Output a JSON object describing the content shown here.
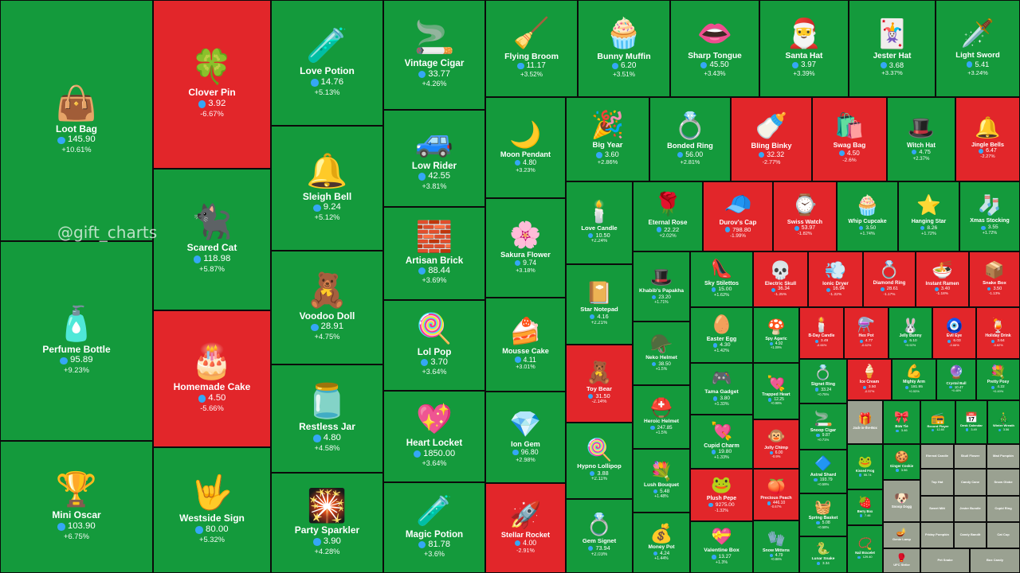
{
  "watermark": "@gift_charts",
  "colors": {
    "up": "#149a3c",
    "down": "#e2262a",
    "na": "#9aa191",
    "currency_icon": "#35a7f5"
  },
  "chart_data": {
    "type": "treemap",
    "title": "",
    "value_unit": "TON",
    "items": [
      {
        "name": "Loot Bag",
        "price": "145.90",
        "change": "+10.61%",
        "icon": "👜"
      },
      {
        "name": "Perfume Bottle",
        "price": "95.89",
        "change": "+9.23%",
        "icon": "🧴"
      },
      {
        "name": "Mini Oscar",
        "price": "103.90",
        "change": "+6.75%",
        "icon": "🏆"
      },
      {
        "name": "Clover Pin",
        "price": "3.92",
        "change": "-6.67%",
        "icon": "🍀"
      },
      {
        "name": "Scared Cat",
        "price": "118.98",
        "change": "+5.87%",
        "icon": "🐈‍⬛"
      },
      {
        "name": "Homemade Cake",
        "price": "4.50",
        "change": "-5.66%",
        "icon": "🎂"
      },
      {
        "name": "Westside Sign",
        "price": "80.00",
        "change": "+5.32%",
        "icon": "🤟"
      },
      {
        "name": "Love Potion",
        "price": "14.76",
        "change": "+5.13%",
        "icon": "🧪"
      },
      {
        "name": "Sleigh Bell",
        "price": "9.24",
        "change": "+5.12%",
        "icon": "🔔"
      },
      {
        "name": "Voodoo Doll",
        "price": "28.91",
        "change": "+4.75%",
        "icon": "🧸"
      },
      {
        "name": "Restless Jar",
        "price": "4.80",
        "change": "+4.58%",
        "icon": "🫙"
      },
      {
        "name": "Party Sparkler",
        "price": "3.90",
        "change": "+4.28%",
        "icon": "🎇"
      },
      {
        "name": "Vintage Cigar",
        "price": "33.77",
        "change": "+4.26%",
        "icon": "🚬"
      },
      {
        "name": "Low Rider",
        "price": "42.55",
        "change": "+3.81%",
        "icon": "🚙"
      },
      {
        "name": "Artisan Brick",
        "price": "88.44",
        "change": "+3.69%",
        "icon": "🧱"
      },
      {
        "name": "Lol Pop",
        "price": "3.70",
        "change": "+3.64%",
        "icon": "🍭"
      },
      {
        "name": "Heart Locket",
        "price": "1850.00",
        "change": "+3.64%",
        "icon": "💖"
      },
      {
        "name": "Magic Potion",
        "price": "81.78",
        "change": "+3.6%",
        "icon": "🧪"
      },
      {
        "name": "Flying Broom",
        "price": "11.17",
        "change": "+3.52%",
        "icon": "🧹"
      },
      {
        "name": "Bunny Muffin",
        "price": "6.20",
        "change": "+3.51%",
        "icon": "🧁"
      },
      {
        "name": "Sharp Tongue",
        "price": "45.50",
        "change": "+3.43%",
        "icon": "👄"
      },
      {
        "name": "Santa Hat",
        "price": "3.97",
        "change": "+3.39%",
        "icon": "🎅"
      },
      {
        "name": "Jester Hat",
        "price": "3.68",
        "change": "+3.37%",
        "icon": "🃏"
      },
      {
        "name": "Light Sword",
        "price": "5.41",
        "change": "+3.24%",
        "icon": "🗡️"
      },
      {
        "name": "Moon Pendant",
        "price": "4.80",
        "change": "+3.23%",
        "icon": "🌙"
      },
      {
        "name": "Sakura Flower",
        "price": "9.74",
        "change": "+3.18%",
        "icon": "🌸"
      },
      {
        "name": "Mousse Cake",
        "price": "4.11",
        "change": "+3.01%",
        "icon": "🍰"
      },
      {
        "name": "Ion Gem",
        "price": "96.80",
        "change": "+2.98%",
        "icon": "💎"
      },
      {
        "name": "Stellar Rocket",
        "price": "4.00",
        "change": "-2.91%",
        "icon": "🚀"
      },
      {
        "name": "Big Year",
        "price": "3.60",
        "change": "+2.86%",
        "icon": "🎉"
      },
      {
        "name": "Bonded Ring",
        "price": "56.00",
        "change": "+2.81%",
        "icon": "💍"
      },
      {
        "name": "Bling Binky",
        "price": "32.32",
        "change": "-2.77%",
        "icon": "🍼"
      },
      {
        "name": "Swag Bag",
        "price": "4.50",
        "change": "-2.6%",
        "icon": "🛍️"
      },
      {
        "name": "Witch Hat",
        "price": "4.75",
        "change": "+2.37%",
        "icon": "🎩"
      },
      {
        "name": "Jingle Bells",
        "price": "6.47",
        "change": "-2.27%",
        "icon": "🔔"
      },
      {
        "name": "Love Candle",
        "price": "10.50",
        "change": "+2.24%",
        "icon": "🕯️"
      },
      {
        "name": "Star Notepad",
        "price": "4.16",
        "change": "+2.21%",
        "icon": "📔"
      },
      {
        "name": "Toy Bear",
        "price": "31.50",
        "change": "-2.14%",
        "icon": "🧸"
      },
      {
        "name": "Hypno Lollipop",
        "price": "3.88",
        "change": "+2.11%",
        "icon": "🍭"
      },
      {
        "name": "Gem Signet",
        "price": "73.94",
        "change": "+2.03%",
        "icon": "💍"
      },
      {
        "name": "Eternal Rose",
        "price": "22.22",
        "change": "+2.02%",
        "icon": "🌹"
      },
      {
        "name": "Durov's Cap",
        "price": "798.80",
        "change": "-1.99%",
        "icon": "🧢"
      },
      {
        "name": "Swiss Watch",
        "price": "53.97",
        "change": "-1.82%",
        "icon": "⌚"
      },
      {
        "name": "Whip Cupcake",
        "price": "3.50",
        "change": "+1.74%",
        "icon": "🧁"
      },
      {
        "name": "Hanging Star",
        "price": "8.26",
        "change": "+1.72%",
        "icon": "⭐"
      },
      {
        "name": "Xmas Stocking",
        "price": "3.55",
        "change": "+1.72%",
        "icon": "🧦"
      },
      {
        "name": "Khabib's Papakha",
        "price": "23.20",
        "change": "+1.71%",
        "icon": "🎩"
      },
      {
        "name": "Sky Stilettos",
        "price": "15.00",
        "change": "+1.62%",
        "icon": "👠"
      },
      {
        "name": "Electric Skull",
        "price": "36.34",
        "change": "-1.25%",
        "icon": "💀"
      },
      {
        "name": "Ionic Dryer",
        "price": "16.94",
        "change": "-1.22%",
        "icon": "💨"
      },
      {
        "name": "Diamond Ring",
        "price": "28.61",
        "change": "-1.17%",
        "icon": "💍"
      },
      {
        "name": "Instant Ramen",
        "price": "3.40",
        "change": "-1.18%",
        "icon": "🍜"
      },
      {
        "name": "Snake Box",
        "price": "3.50",
        "change": "-1.13%",
        "icon": "📦"
      },
      {
        "name": "Neko Helmet",
        "price": "38.50",
        "change": "+1.5%",
        "icon": "🪖"
      },
      {
        "name": "Easter Egg",
        "price": "4.30",
        "change": "+1.42%",
        "icon": "🥚"
      },
      {
        "name": "Spy Agaric",
        "price": "4.92",
        "change": "+1.09%",
        "icon": "🍄"
      },
      {
        "name": "B-Day Candle",
        "price": "3.49",
        "change": "-0.66%",
        "icon": "🕯️"
      },
      {
        "name": "Hex Pot",
        "price": "4.77",
        "change": "-0.62%",
        "icon": "⚗️"
      },
      {
        "name": "Jelly Bunny",
        "price": "6.10",
        "change": "+0.92%",
        "icon": "🐰"
      },
      {
        "name": "Evil Eye",
        "price": "6.03",
        "change": "-0.66%",
        "icon": "🧿"
      },
      {
        "name": "Holiday Drink",
        "price": "3.64",
        "change": "-0.62%",
        "icon": "🍹"
      },
      {
        "name": "Tama Gadget",
        "price": "3.80",
        "change": "+1.33%",
        "icon": "🎮"
      },
      {
        "name": "Trapped Heart",
        "price": "12.25",
        "change": "+0.98%",
        "icon": "💘"
      },
      {
        "name": "Signet Ring",
        "price": "33.24",
        "change": "+0.75%",
        "icon": "💍"
      },
      {
        "name": "Ice Cream",
        "price": "3.50",
        "change": "-0.57%",
        "icon": "🍦"
      },
      {
        "name": "Mighty Arm",
        "price": "181.95",
        "change": "+0.53%",
        "icon": "💪"
      },
      {
        "name": "Crystal Ball",
        "price": "10.47",
        "change": "+0.48%",
        "icon": "🔮"
      },
      {
        "name": "Pretty Posy",
        "price": "4.22",
        "change": "+0.49%",
        "icon": "💐"
      },
      {
        "name": "Heroic Helmet",
        "price": "247.85",
        "change": "+1.5%",
        "icon": "⛑️"
      },
      {
        "name": "Cupid Charm",
        "price": "19.80",
        "change": "+1.33%",
        "icon": "💘"
      },
      {
        "name": "Jolly Chimp",
        "price": "6.00",
        "change": "-0.9%",
        "icon": "🐵"
      },
      {
        "name": "Snoop Cigar",
        "price": "9.87",
        "change": "+0.71%",
        "icon": "🚬"
      },
      {
        "name": "Jack-in-the-Box",
        "price": "",
        "change": "",
        "icon": "🎁"
      },
      {
        "name": "Bow Tie",
        "price": "3.46",
        "change": "",
        "icon": "🎀"
      },
      {
        "name": "Record Player",
        "price": "12.80",
        "change": "",
        "icon": "📻"
      },
      {
        "name": "Desk Calendar",
        "price": "3.49",
        "change": "",
        "icon": "📅"
      },
      {
        "name": "Winter Wreath",
        "price": "3.56",
        "change": "",
        "icon": "🎄"
      },
      {
        "name": "Lush Bouquet",
        "price": "5.48",
        "change": "+1.48%",
        "icon": "💐"
      },
      {
        "name": "Plush Pepe",
        "price": "9275.00",
        "change": "-1.32%",
        "icon": "🐸"
      },
      {
        "name": "Precious Peach",
        "price": "446.10",
        "change": "-0.67%",
        "icon": "🍑"
      },
      {
        "name": "Astral Shard",
        "price": "193.79",
        "change": "+0.59%",
        "icon": "🔷"
      },
      {
        "name": "Kissed Frog",
        "price": "55.74",
        "change": "",
        "icon": "🐸"
      },
      {
        "name": "Ginger Cookie",
        "price": "3.56",
        "change": "",
        "icon": "🍪"
      },
      {
        "name": "Snoop Dogg",
        "price": "",
        "change": "",
        "icon": "🐶"
      },
      {
        "name": "Eternal Candle",
        "price": "",
        "change": "",
        "icon": ""
      },
      {
        "name": "Skull Flower",
        "price": "",
        "change": "",
        "icon": ""
      },
      {
        "name": "Mad Pumpkin",
        "price": "",
        "change": "",
        "icon": ""
      },
      {
        "name": "Top Hat",
        "price": "",
        "change": "",
        "icon": ""
      },
      {
        "name": "Candy Cane",
        "price": "",
        "change": "",
        "icon": ""
      },
      {
        "name": "Snow Globe",
        "price": "",
        "change": "",
        "icon": ""
      },
      {
        "name": "Money Pot",
        "price": "4.24",
        "change": "+1.44%",
        "icon": "💰"
      },
      {
        "name": "Valentine Box",
        "price": "13.27",
        "change": "+1.3%",
        "icon": "💝"
      },
      {
        "name": "Snow Mittens",
        "price": "4.79",
        "change": "+0.86%",
        "icon": "🧤"
      },
      {
        "name": "Spring Basket",
        "price": "5.08",
        "change": "+0.58%",
        "icon": "🧺"
      },
      {
        "name": "Lunar Snake",
        "price": "3.34",
        "change": "",
        "icon": "🐍"
      },
      {
        "name": "Berry Box",
        "price": "7.46",
        "change": "",
        "icon": "🍓"
      },
      {
        "name": "Nail Bracelet",
        "price": "129.40",
        "change": "",
        "icon": "📿"
      },
      {
        "name": "Genie Lamp",
        "price": "",
        "change": "",
        "icon": "🪔"
      },
      {
        "name": "UFC Strike",
        "price": "",
        "change": "",
        "icon": "🥊"
      },
      {
        "name": "Sweet Mitt",
        "price": "",
        "change": "",
        "icon": ""
      },
      {
        "name": "Jester Bundle",
        "price": "",
        "change": "",
        "icon": ""
      },
      {
        "name": "Cupid Ring",
        "price": "",
        "change": "",
        "icon": ""
      },
      {
        "name": "Friday Pumpkin",
        "price": "",
        "change": "",
        "icon": ""
      },
      {
        "name": "Candy Bandit",
        "price": "",
        "change": "",
        "icon": ""
      },
      {
        "name": "Cat Cup",
        "price": "",
        "change": "",
        "icon": ""
      },
      {
        "name": "Pet Snake",
        "price": "",
        "change": "",
        "icon": ""
      },
      {
        "name": "Box Candy",
        "price": "",
        "change": "",
        "icon": ""
      }
    ]
  }
}
